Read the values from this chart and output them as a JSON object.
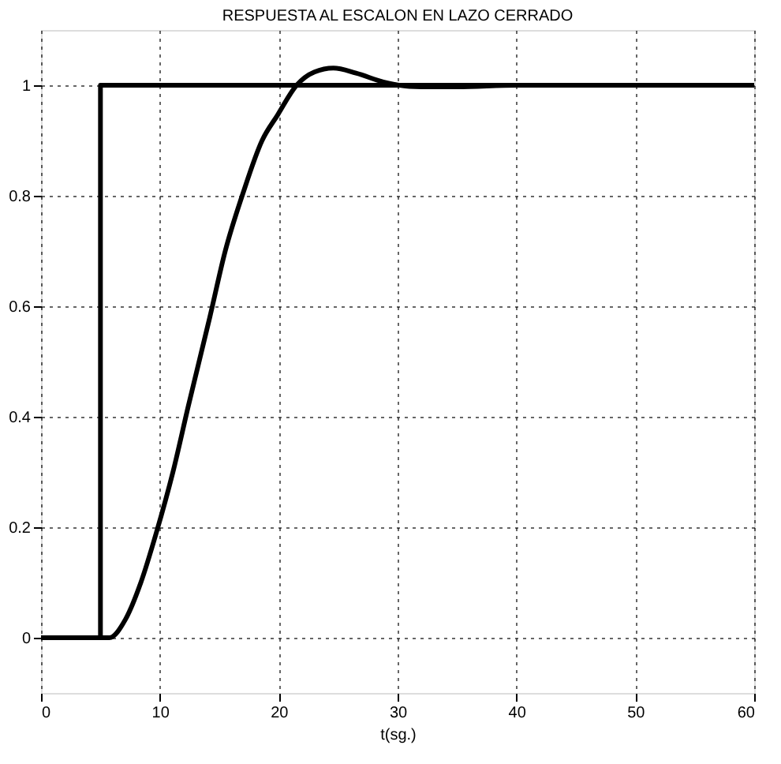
{
  "chart_data": {
    "type": "line",
    "title": "RESPUESTA AL ESCALON EN LAZO CERRADO",
    "xlabel": "t(sg.)",
    "xlim": [
      0,
      60
    ],
    "xticks": [
      0,
      10,
      20,
      30,
      40,
      50,
      60
    ],
    "ylim": [
      -0.1,
      1.1
    ],
    "yticks": [
      0,
      0.2,
      0.4,
      0.6,
      0.8,
      1
    ],
    "grid": true,
    "line_style": "solid",
    "marker": "none",
    "series": [
      {
        "color": "#000000",
        "x": [
          0,
          5,
          5,
          60
        ],
        "values": [
          0,
          0,
          1,
          1
        ]
      },
      {
        "color": "#000000",
        "x": [
          0,
          5,
          5.75,
          7.1,
          8.4,
          9.7,
          11.1,
          12.4,
          14.2,
          15.5,
          17.0,
          18.6,
          19.9,
          21.5,
          23.0,
          24.6,
          26.5,
          28.8,
          31,
          33,
          35,
          40,
          60
        ],
        "values": [
          0,
          0,
          0,
          0.033,
          0.1,
          0.19,
          0.3,
          0.42,
          0.58,
          0.7,
          0.805,
          0.9,
          0.946,
          1.0,
          1.024,
          1.031,
          1.022,
          1.006,
          0.998,
          0.997,
          0.997,
          1.0,
          1.0
        ]
      }
    ]
  }
}
